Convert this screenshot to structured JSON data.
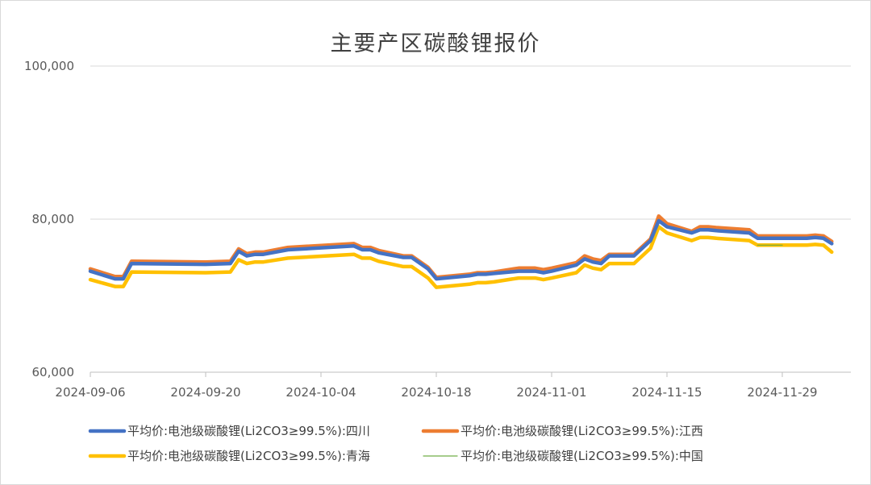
{
  "chart_data": {
    "type": "line",
    "title": "主要产区碳酸锂报价",
    "ylim": [
      60000,
      100000
    ],
    "y_ticks": [
      "60,000",
      "80,000",
      "100,000"
    ],
    "x_tick_labels": [
      "2024-09-06",
      "2024-09-20",
      "2024-10-04",
      "2024-10-18",
      "2024-11-01",
      "2024-11-15",
      "2024-11-29"
    ],
    "grid": "horizontal",
    "legend_position": "bottom",
    "series": [
      {
        "name": "平均价:电池级碳酸锂(Li2CO3≥99.5%):四川",
        "color": "#4472C4",
        "points": [
          [
            "2024-09-06",
            73200
          ],
          [
            "2024-09-09",
            72200
          ],
          [
            "2024-09-10",
            72200
          ],
          [
            "2024-09-11",
            74200
          ],
          [
            "2024-09-20",
            74100
          ],
          [
            "2024-09-23",
            74200
          ],
          [
            "2024-09-24",
            75800
          ],
          [
            "2024-09-25",
            75200
          ],
          [
            "2024-09-26",
            75400
          ],
          [
            "2024-09-27",
            75400
          ],
          [
            "2024-09-30",
            76000
          ],
          [
            "2024-10-08",
            76500
          ],
          [
            "2024-10-09",
            76000
          ],
          [
            "2024-10-10",
            76000
          ],
          [
            "2024-10-11",
            75600
          ],
          [
            "2024-10-14",
            75000
          ],
          [
            "2024-10-15",
            75000
          ],
          [
            "2024-10-17",
            73500
          ],
          [
            "2024-10-18",
            72200
          ],
          [
            "2024-10-21",
            72500
          ],
          [
            "2024-10-22",
            72600
          ],
          [
            "2024-10-23",
            72800
          ],
          [
            "2024-10-24",
            72800
          ],
          [
            "2024-10-25",
            72900
          ],
          [
            "2024-10-28",
            73200
          ],
          [
            "2024-10-30",
            73200
          ],
          [
            "2024-10-31",
            73000
          ],
          [
            "2024-11-01",
            73200
          ],
          [
            "2024-11-04",
            74000
          ],
          [
            "2024-11-05",
            74800
          ],
          [
            "2024-11-06",
            74400
          ],
          [
            "2024-11-07",
            74200
          ],
          [
            "2024-11-08",
            75200
          ],
          [
            "2024-11-11",
            75200
          ],
          [
            "2024-11-13",
            77200
          ],
          [
            "2024-11-14",
            79800
          ],
          [
            "2024-11-15",
            79000
          ],
          [
            "2024-11-18",
            78200
          ],
          [
            "2024-11-19",
            78600
          ],
          [
            "2024-11-20",
            78600
          ],
          [
            "2024-11-21",
            78500
          ],
          [
            "2024-11-25",
            78200
          ],
          [
            "2024-11-26",
            77500
          ],
          [
            "2024-11-29",
            77500
          ],
          [
            "2024-12-02",
            77500
          ],
          [
            "2024-12-03",
            77600
          ],
          [
            "2024-12-04",
            77500
          ],
          [
            "2024-12-05",
            76800
          ]
        ]
      },
      {
        "name": "平均价:电池级碳酸锂(Li2CO3≥99.5%):江西",
        "color": "#ED7D31",
        "points": [
          [
            "2024-09-06",
            73500
          ],
          [
            "2024-09-09",
            72500
          ],
          [
            "2024-09-10",
            72500
          ],
          [
            "2024-09-11",
            74500
          ],
          [
            "2024-09-20",
            74400
          ],
          [
            "2024-09-23",
            74500
          ],
          [
            "2024-09-24",
            76100
          ],
          [
            "2024-09-25",
            75500
          ],
          [
            "2024-09-26",
            75700
          ],
          [
            "2024-09-27",
            75700
          ],
          [
            "2024-09-30",
            76300
          ],
          [
            "2024-10-08",
            76800
          ],
          [
            "2024-10-09",
            76300
          ],
          [
            "2024-10-10",
            76300
          ],
          [
            "2024-10-11",
            75900
          ],
          [
            "2024-10-14",
            75200
          ],
          [
            "2024-10-15",
            75200
          ],
          [
            "2024-10-17",
            73700
          ],
          [
            "2024-10-18",
            72400
          ],
          [
            "2024-10-21",
            72700
          ],
          [
            "2024-10-22",
            72800
          ],
          [
            "2024-10-23",
            73000
          ],
          [
            "2024-10-24",
            73000
          ],
          [
            "2024-10-25",
            73100
          ],
          [
            "2024-10-28",
            73600
          ],
          [
            "2024-10-30",
            73600
          ],
          [
            "2024-10-31",
            73400
          ],
          [
            "2024-11-01",
            73600
          ],
          [
            "2024-11-04",
            74300
          ],
          [
            "2024-11-05",
            75200
          ],
          [
            "2024-11-06",
            74800
          ],
          [
            "2024-11-07",
            74600
          ],
          [
            "2024-11-08",
            75400
          ],
          [
            "2024-11-11",
            75400
          ],
          [
            "2024-11-13",
            77400
          ],
          [
            "2024-11-14",
            80400
          ],
          [
            "2024-11-15",
            79400
          ],
          [
            "2024-11-18",
            78400
          ],
          [
            "2024-11-19",
            79000
          ],
          [
            "2024-11-20",
            79000
          ],
          [
            "2024-11-21",
            78900
          ],
          [
            "2024-11-25",
            78600
          ],
          [
            "2024-11-26",
            77800
          ],
          [
            "2024-11-29",
            77800
          ],
          [
            "2024-12-02",
            77800
          ],
          [
            "2024-12-03",
            77900
          ],
          [
            "2024-12-04",
            77800
          ],
          [
            "2024-12-05",
            77100
          ]
        ]
      },
      {
        "name": "平均价:电池级碳酸锂(Li2CO3≥99.5%):青海",
        "color": "#FFC000",
        "points": [
          [
            "2024-09-06",
            72100
          ],
          [
            "2024-09-09",
            71200
          ],
          [
            "2024-09-10",
            71200
          ],
          [
            "2024-09-11",
            73100
          ],
          [
            "2024-09-20",
            73000
          ],
          [
            "2024-09-23",
            73100
          ],
          [
            "2024-09-24",
            74700
          ],
          [
            "2024-09-25",
            74200
          ],
          [
            "2024-09-26",
            74400
          ],
          [
            "2024-09-27",
            74400
          ],
          [
            "2024-09-30",
            74900
          ],
          [
            "2024-10-08",
            75400
          ],
          [
            "2024-10-09",
            74900
          ],
          [
            "2024-10-10",
            74900
          ],
          [
            "2024-10-11",
            74500
          ],
          [
            "2024-10-14",
            73800
          ],
          [
            "2024-10-15",
            73800
          ],
          [
            "2024-10-17",
            72300
          ],
          [
            "2024-10-18",
            71100
          ],
          [
            "2024-10-21",
            71400
          ],
          [
            "2024-10-22",
            71500
          ],
          [
            "2024-10-23",
            71700
          ],
          [
            "2024-10-24",
            71700
          ],
          [
            "2024-10-25",
            71800
          ],
          [
            "2024-10-28",
            72300
          ],
          [
            "2024-10-30",
            72300
          ],
          [
            "2024-10-31",
            72100
          ],
          [
            "2024-11-01",
            72300
          ],
          [
            "2024-11-04",
            73000
          ],
          [
            "2024-11-05",
            74000
          ],
          [
            "2024-11-06",
            73600
          ],
          [
            "2024-11-07",
            73400
          ],
          [
            "2024-11-08",
            74200
          ],
          [
            "2024-11-11",
            74200
          ],
          [
            "2024-11-13",
            76200
          ],
          [
            "2024-11-14",
            79000
          ],
          [
            "2024-11-15",
            78200
          ],
          [
            "2024-11-18",
            77200
          ],
          [
            "2024-11-19",
            77600
          ],
          [
            "2024-11-20",
            77600
          ],
          [
            "2024-11-21",
            77500
          ],
          [
            "2024-11-25",
            77200
          ],
          [
            "2024-11-26",
            76600
          ],
          [
            "2024-11-29",
            76600
          ],
          [
            "2024-12-02",
            76600
          ],
          [
            "2024-12-03",
            76700
          ],
          [
            "2024-12-04",
            76600
          ],
          [
            "2024-12-05",
            75700
          ]
        ]
      },
      {
        "name": "平均价:电池级碳酸锂(Li2CO3≥99.5%):中国",
        "color": "#70AD47",
        "points": [
          [
            "2024-11-26",
            76600
          ],
          [
            "2024-11-29",
            76600
          ]
        ]
      }
    ]
  }
}
